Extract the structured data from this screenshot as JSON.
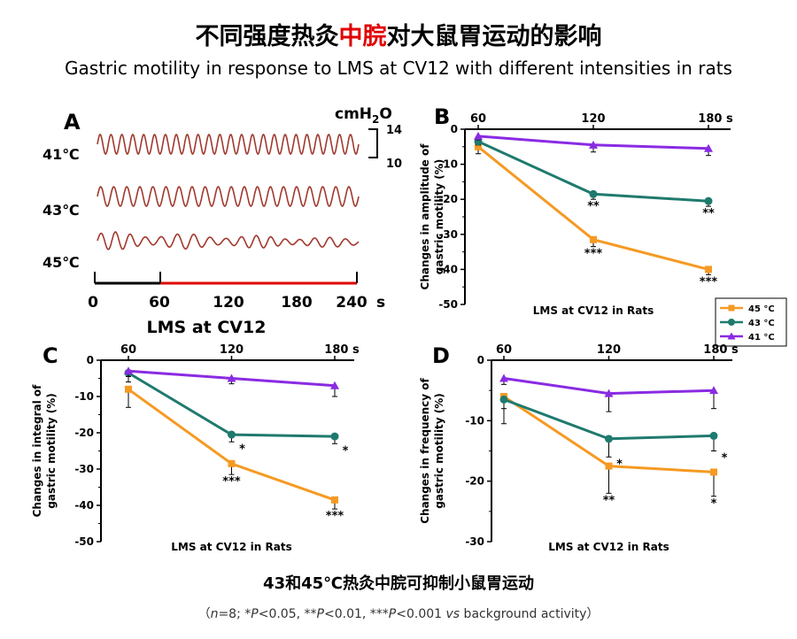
{
  "header": {
    "title_pre": "不同强度热灸",
    "title_red": "中脘",
    "title_post": "对大鼠胃运动的影响",
    "subtitle": "Gastric motility in response to LMS at CV12 with different intensities in rats"
  },
  "colors": {
    "s45": "#F59A23",
    "s43": "#1F7A6E",
    "s41": "#8A2BE2",
    "trace": "#A0392E",
    "red_bar": "#E00000"
  },
  "panelA": {
    "letter": "A",
    "unit_label": "cmH",
    "unit_sub": "2",
    "unit_tail": "O",
    "scale_top": "14",
    "scale_bottom": "10",
    "trace_labels": [
      "41℃",
      "43℃",
      "45℃"
    ],
    "time_ticks": [
      "0",
      "60",
      "120",
      "180",
      "240"
    ],
    "time_unit": "s",
    "xlabel": "LMS at CV12"
  },
  "legend": {
    "entries": [
      "45 °C",
      "43 °C",
      "41 °C"
    ]
  },
  "chart_data": [
    {
      "panel": "B",
      "type": "line",
      "x": [
        60,
        120,
        180
      ],
      "x_tick_labels": [
        "60",
        "120",
        "180 s"
      ],
      "ylim": [
        -50,
        0
      ],
      "y_ticks": [
        "0",
        "-10",
        "-20",
        "-30",
        "-40",
        "-50"
      ],
      "ylabel_line1": "Changes in amplitude of",
      "ylabel_line2": "gastric motility (%)",
      "xlabel": "LMS at CV12 in Rats",
      "series": [
        {
          "name": "45 °C",
          "values": [
            -5,
            -31.5,
            -40
          ],
          "err": [
            2,
            2,
            1.5
          ],
          "sig": [
            "",
            "***",
            "***"
          ]
        },
        {
          "name": "43 °C",
          "values": [
            -3.5,
            -18.5,
            -20.5
          ],
          "err": [
            1,
            1.5,
            1.5
          ],
          "sig": [
            "",
            "**",
            "**"
          ]
        },
        {
          "name": "41 °C",
          "values": [
            -2,
            -4.5,
            -5.5
          ],
          "err": [
            1,
            2,
            2
          ],
          "sig": [
            "",
            "",
            ""
          ]
        }
      ]
    },
    {
      "panel": "C",
      "type": "line",
      "x": [
        60,
        120,
        180
      ],
      "x_tick_labels": [
        "60",
        "120",
        "180 s"
      ],
      "ylim": [
        -50,
        0
      ],
      "y_ticks": [
        "0",
        "-10",
        "-20",
        "-30",
        "-40",
        "-50"
      ],
      "ylabel_line1": "Changes in integral of",
      "ylabel_line2": "gastric motility (%)",
      "xlabel": "LMS at CV12 in Rats",
      "series": [
        {
          "name": "45 °C",
          "values": [
            -8,
            -28.5,
            -38.5
          ],
          "err": [
            5,
            3,
            2.5
          ],
          "sig": [
            "",
            "***",
            "***"
          ]
        },
        {
          "name": "43 °C",
          "values": [
            -3.5,
            -20.5,
            -21
          ],
          "err": [
            2.5,
            2,
            2
          ],
          "sig": [
            "",
            "*",
            "*"
          ]
        },
        {
          "name": "41 °C",
          "values": [
            -3,
            -5,
            -7
          ],
          "err": [
            1.5,
            1.5,
            3
          ],
          "sig": [
            "",
            "",
            ""
          ]
        }
      ]
    },
    {
      "panel": "D",
      "type": "line",
      "x": [
        60,
        120,
        180
      ],
      "x_tick_labels": [
        "60",
        "120",
        "180 s"
      ],
      "ylim": [
        -30,
        0
      ],
      "y_ticks": [
        "0",
        "-10",
        "-20",
        "-30"
      ],
      "ylabel_line1": "Changes in frequency of",
      "ylabel_line2": "gastric motility (%)",
      "xlabel": "LMS at CV12 in Rats",
      "series": [
        {
          "name": "45 °C",
          "values": [
            -6,
            -17.5,
            -18.5
          ],
          "err": [
            2,
            4.5,
            4
          ],
          "sig": [
            "",
            "**",
            "*"
          ]
        },
        {
          "name": "43 °C",
          "values": [
            -6.5,
            -13,
            -12.5
          ],
          "err": [
            4,
            3,
            2.5
          ],
          "sig": [
            "",
            "*",
            "*"
          ]
        },
        {
          "name": "41 °C",
          "values": [
            -3,
            -5.5,
            -5
          ],
          "err": [
            1,
            3,
            3
          ],
          "sig": [
            "",
            "",
            ""
          ]
        }
      ]
    }
  ],
  "footer": {
    "conclusion": "43和45℃热灸中脘可抑制小鼠胃运动",
    "n_label": "n",
    "stats_part1": "=8; *",
    "p1": "P",
    "stats_part2": "<0.05, **",
    "p2": "P",
    "stats_part3": "<0.01, ***",
    "p3": "P",
    "stats_part4": "<0.001 ",
    "vs": "vs",
    "stats_part5": " background activity）",
    "open_paren": "（"
  }
}
